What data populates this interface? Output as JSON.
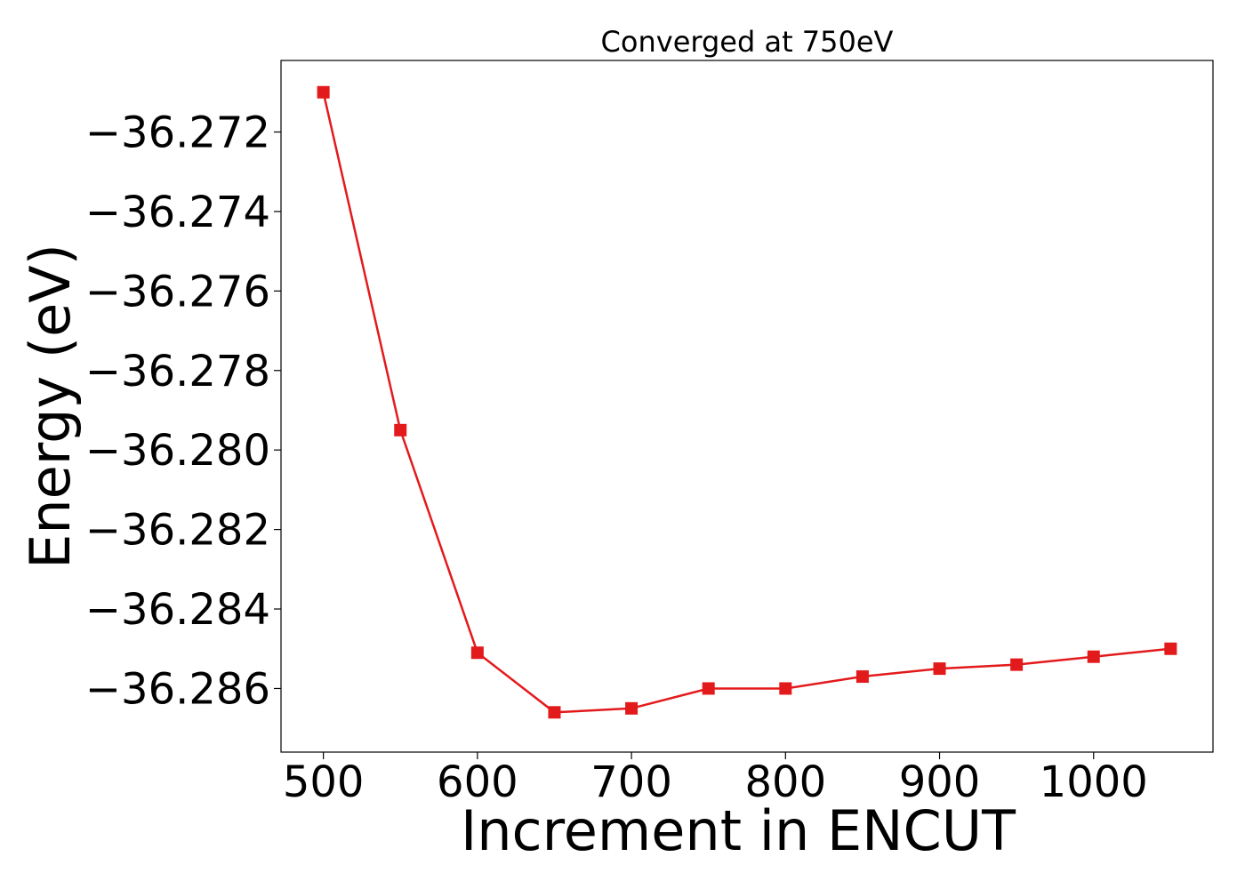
{
  "chart_data": {
    "type": "line",
    "title": "Converged at 750eV",
    "xlabel": "Increment in ENCUT",
    "ylabel": "Energy (eV)",
    "xlim": [
      472.5,
      1077.5
    ],
    "ylim": [
      -36.2876,
      -36.2702
    ],
    "xticks": [
      500,
      600,
      700,
      800,
      900,
      1000
    ],
    "xtick_labels": [
      "500",
      "600",
      "700",
      "800",
      "900",
      "1000"
    ],
    "yticks": [
      -36.272,
      -36.274,
      -36.276,
      -36.278,
      -36.28,
      -36.282,
      -36.284,
      -36.286
    ],
    "ytick_labels": [
      "−36.272",
      "−36.274",
      "−36.276",
      "−36.278",
      "−36.280",
      "−36.282",
      "−36.284",
      "−36.286"
    ],
    "grid": false,
    "series": [
      {
        "color": "#e31a1c",
        "marker": "square",
        "x": [
          500,
          550,
          600,
          650,
          700,
          750,
          800,
          850,
          900,
          950,
          1000,
          1050
        ],
        "y": [
          -36.271,
          -36.2795,
          -36.2851,
          -36.2866,
          -36.2865,
          -36.286,
          -36.286,
          -36.2857,
          -36.2855,
          -36.2854,
          -36.2852,
          -36.285
        ]
      }
    ]
  }
}
